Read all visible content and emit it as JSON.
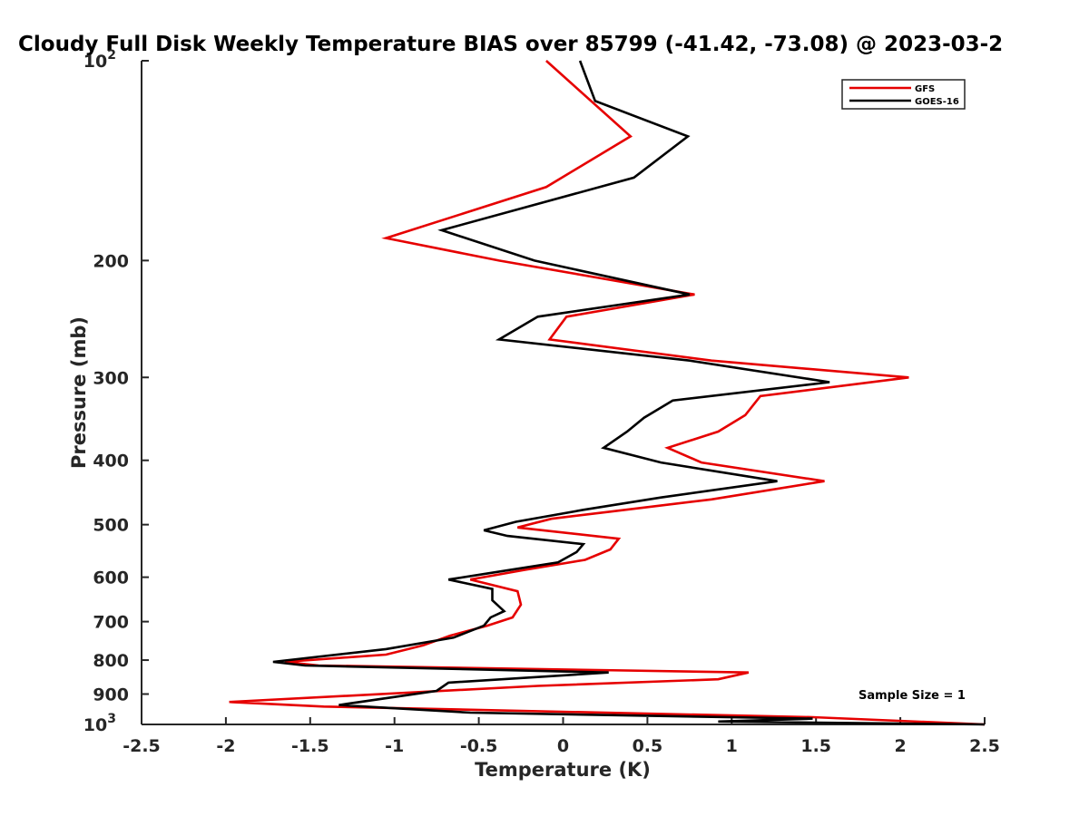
{
  "chart_data": {
    "type": "line",
    "title": "Cloudy Full Disk Weekly Temperature BIAS over 85799 (-41.42, -73.08) @ 2023-03-2",
    "xlabel": "Temperature (K)",
    "ylabel": "Pressure (mb)",
    "xlim": [
      -2.5,
      2.5
    ],
    "ylim": [
      100,
      1000
    ],
    "y_scale": "log",
    "y_reversed": true,
    "x_ticks": [
      "-2.5",
      "-2",
      "-1.5",
      "-1",
      "-0.5",
      "0",
      "0.5",
      "1",
      "1.5",
      "2",
      "2.5"
    ],
    "y_ticks": [
      {
        "value": 100,
        "label": "10",
        "sup": "2"
      },
      {
        "value": 200,
        "label": "200"
      },
      {
        "value": 300,
        "label": "300"
      },
      {
        "value": 400,
        "label": "400"
      },
      {
        "value": 500,
        "label": "500"
      },
      {
        "value": 600,
        "label": "600"
      },
      {
        "value": 700,
        "label": "700"
      },
      {
        "value": 800,
        "label": "800"
      },
      {
        "value": 900,
        "label": "900"
      },
      {
        "value": 1000,
        "label": "10",
        "sup": "3"
      }
    ],
    "grid": false,
    "legend_position": "top-right",
    "annotation": "Sample Size = 1",
    "series": [
      {
        "name": "GFS",
        "color": "#e60000",
        "points": [
          [
            -0.1,
            100
          ],
          [
            0.4,
            130
          ],
          [
            -0.1,
            155
          ],
          [
            -1.05,
            185
          ],
          [
            -0.38,
            200
          ],
          [
            0.78,
            225
          ],
          [
            0.02,
            243
          ],
          [
            -0.08,
            263
          ],
          [
            0.88,
            283
          ],
          [
            2.05,
            300
          ],
          [
            1.17,
            320
          ],
          [
            1.08,
            342
          ],
          [
            0.92,
            362
          ],
          [
            0.62,
            383
          ],
          [
            0.82,
            403
          ],
          [
            1.55,
            430
          ],
          [
            0.88,
            458
          ],
          [
            0.28,
            478
          ],
          [
            -0.07,
            490
          ],
          [
            -0.27,
            505
          ],
          [
            0.33,
            525
          ],
          [
            0.28,
            545
          ],
          [
            0.13,
            565
          ],
          [
            -0.23,
            585
          ],
          [
            -0.55,
            605
          ],
          [
            -0.27,
            630
          ],
          [
            -0.25,
            660
          ],
          [
            -0.3,
            690
          ],
          [
            -0.45,
            710
          ],
          [
            -0.67,
            735
          ],
          [
            -0.83,
            760
          ],
          [
            -1.05,
            785
          ],
          [
            -1.65,
            805
          ],
          [
            -1.45,
            815
          ],
          [
            1.1,
            835
          ],
          [
            0.92,
            855
          ],
          [
            -0.15,
            875
          ],
          [
            -1.98,
            925
          ],
          [
            -1.42,
            940
          ],
          [
            1.48,
            975
          ],
          [
            2.5,
            1000
          ]
        ]
      },
      {
        "name": "GOES-16",
        "color": "#000000",
        "points": [
          [
            0.1,
            100
          ],
          [
            0.19,
            115
          ],
          [
            0.74,
            130
          ],
          [
            0.42,
            150
          ],
          [
            -0.72,
            180
          ],
          [
            -0.17,
            200
          ],
          [
            0.75,
            225
          ],
          [
            -0.15,
            243
          ],
          [
            -0.38,
            263
          ],
          [
            0.75,
            283
          ],
          [
            1.58,
            305
          ],
          [
            0.65,
            325
          ],
          [
            0.48,
            345
          ],
          [
            0.38,
            362
          ],
          [
            0.24,
            383
          ],
          [
            0.58,
            403
          ],
          [
            1.27,
            430
          ],
          [
            0.58,
            455
          ],
          [
            0.12,
            475
          ],
          [
            -0.28,
            495
          ],
          [
            -0.47,
            510
          ],
          [
            -0.33,
            520
          ],
          [
            0.12,
            535
          ],
          [
            0.08,
            550
          ],
          [
            -0.03,
            570
          ],
          [
            -0.37,
            588
          ],
          [
            -0.68,
            605
          ],
          [
            -0.42,
            625
          ],
          [
            -0.42,
            650
          ],
          [
            -0.35,
            675
          ],
          [
            -0.43,
            690
          ],
          [
            -0.47,
            710
          ],
          [
            -0.65,
            740
          ],
          [
            -1.05,
            770
          ],
          [
            -1.72,
            805
          ],
          [
            -1.53,
            815
          ],
          [
            0.27,
            835
          ],
          [
            -0.68,
            865
          ],
          [
            -0.75,
            890
          ],
          [
            -1.33,
            935
          ],
          [
            -0.55,
            960
          ],
          [
            1.48,
            980
          ],
          [
            0.92,
            990
          ],
          [
            2.5,
            1000
          ]
        ]
      }
    ]
  }
}
